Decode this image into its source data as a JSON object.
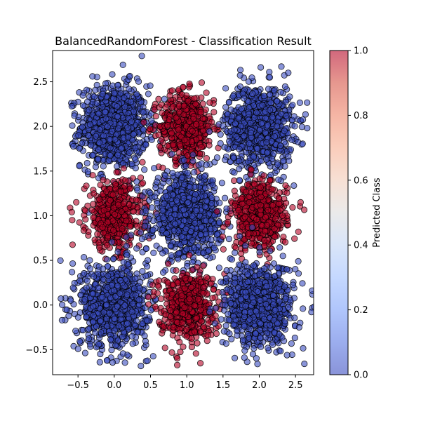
{
  "chart_data": {
    "type": "scatter",
    "title": "BalancedRandomForest - Classification Result",
    "xlabel": "",
    "ylabel": "",
    "xlim": [
      -0.85,
      2.75
    ],
    "ylim": [
      -0.78,
      2.85
    ],
    "x_ticks": [
      -0.5,
      0.0,
      0.5,
      1.0,
      1.5,
      2.0,
      2.5
    ],
    "x_tick_labels": [
      "−0.5",
      "0.0",
      "0.5",
      "1.0",
      "1.5",
      "2.0",
      "2.5"
    ],
    "y_ticks": [
      -0.5,
      0.0,
      0.5,
      1.0,
      1.5,
      2.0,
      2.5
    ],
    "y_tick_labels": [
      "−0.5",
      "0.0",
      "0.5",
      "1.0",
      "1.5",
      "2.0",
      "2.5"
    ],
    "grid": false,
    "colormap": "coolwarm",
    "point_alpha": 0.6,
    "clusters": [
      {
        "center": [
          0.0,
          2.0
        ],
        "predicted_class": 0,
        "spread": 0.23,
        "points": 900
      },
      {
        "center": [
          1.0,
          2.0
        ],
        "predicted_class": 1,
        "spread": 0.19,
        "points": 500
      },
      {
        "center": [
          2.0,
          2.0
        ],
        "predicted_class": 0,
        "spread": 0.23,
        "points": 900
      },
      {
        "center": [
          0.0,
          1.0
        ],
        "predicted_class": 1,
        "spread": 0.19,
        "points": 500
      },
      {
        "center": [
          1.0,
          1.0
        ],
        "predicted_class": 0,
        "spread": 0.23,
        "points": 900
      },
      {
        "center": [
          2.0,
          1.0
        ],
        "predicted_class": 1,
        "spread": 0.19,
        "points": 500
      },
      {
        "center": [
          0.0,
          0.0
        ],
        "predicted_class": 0,
        "spread": 0.23,
        "points": 900
      },
      {
        "center": [
          1.0,
          0.0
        ],
        "predicted_class": 1,
        "spread": 0.19,
        "points": 500
      },
      {
        "center": [
          2.0,
          0.0
        ],
        "predicted_class": 0,
        "spread": 0.23,
        "points": 900
      }
    ],
    "outliers": [
      {
        "x": -0.72,
        "y": -0.17,
        "c": 0
      },
      {
        "x": -0.1,
        "y": -0.62,
        "c": 0
      },
      {
        "x": 0.12,
        "y": 2.69,
        "c": 0
      },
      {
        "x": -0.55,
        "y": 2.12,
        "c": 0
      },
      {
        "x": -0.3,
        "y": 2.56,
        "c": 0
      },
      {
        "x": 0.95,
        "y": 2.44,
        "c": 1
      },
      {
        "x": -0.58,
        "y": 0.95,
        "c": 1
      },
      {
        "x": 0.44,
        "y": 0.63,
        "c": 0
      },
      {
        "x": 1.55,
        "y": 1.08,
        "c": 0
      },
      {
        "x": 2.57,
        "y": 1.15,
        "c": 1
      },
      {
        "x": 2.4,
        "y": 2.6,
        "c": 0
      },
      {
        "x": 0.7,
        "y": -0.48,
        "c": 1
      },
      {
        "x": 1.07,
        "y": -0.47,
        "c": 1
      },
      {
        "x": 2.55,
        "y": -0.25,
        "c": 0
      },
      {
        "x": -0.5,
        "y": -0.49,
        "c": 0
      },
      {
        "x": 2.54,
        "y": 0.82,
        "c": 1
      },
      {
        "x": 1.38,
        "y": 0.64,
        "c": 0
      },
      {
        "x": -0.6,
        "y": 0.05,
        "c": 0
      }
    ],
    "colorbar": {
      "label": "Predicted Class",
      "ticks": [
        0.0,
        0.2,
        0.4,
        0.6,
        0.8,
        1.0
      ],
      "tick_labels": [
        "0.0",
        "0.2",
        "0.4",
        "0.6",
        "0.8",
        "1.0"
      ]
    }
  }
}
